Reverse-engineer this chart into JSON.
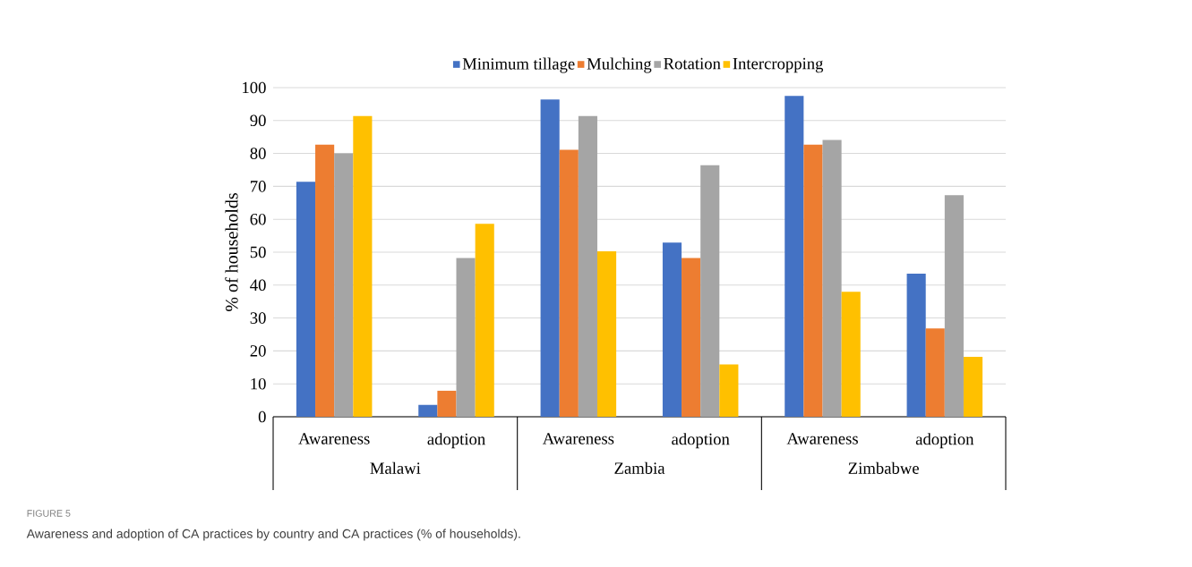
{
  "chart_data": {
    "type": "bar",
    "ylabel": "% of households",
    "categories": [
      "Awareness",
      "adoption",
      "Awareness",
      "adoption",
      "Awareness",
      "adoption"
    ],
    "series": [
      {
        "name": "Minimum tillage",
        "color": "#4472c4",
        "values": [
          71.4,
          3.6,
          96.4,
          52.9,
          97.5,
          43.5
        ]
      },
      {
        "name": "Mulching",
        "color": "#ed7d31",
        "values": [
          82.7,
          7.9,
          81.1,
          48.2,
          82.7,
          26.8
        ]
      },
      {
        "name": "Rotation",
        "color": "#a5a5a5",
        "values": [
          80,
          48.2,
          91.4,
          76.4,
          84.1,
          67.3
        ]
      },
      {
        "name": "Intercropping",
        "color": "#ffc000",
        "values": [
          91.4,
          58.6,
          50.3,
          15.9,
          38,
          18.2
        ]
      }
    ],
    "ylim": [
      0,
      100
    ],
    "yticks": [
      0,
      10,
      20,
      30,
      40,
      50,
      60,
      70,
      80,
      90,
      100
    ],
    "grid": "y",
    "legend": "top",
    "annotations": [
      "Malawi",
      "Zambia",
      "Zimbabwe",
      "FIGURE 5",
      "Awareness and adoption of CA practices by country and CA practices (% of households)."
    ]
  }
}
